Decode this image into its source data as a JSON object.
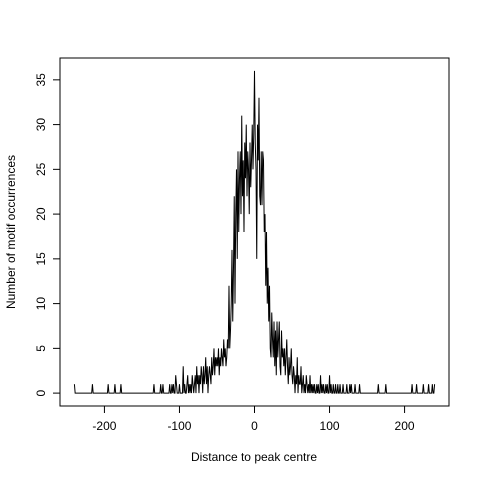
{
  "chart_data": {
    "type": "line",
    "xlabel": "Distance to peak centre",
    "ylabel": "Number of motif occurrences",
    "color": "#000000",
    "xlim": [
      -259.2,
      259.2
    ],
    "ylim": [
      -1.44,
      37.44
    ],
    "xticks": [
      -200,
      -100,
      0,
      100,
      200
    ],
    "yticks": [
      0,
      5,
      10,
      15,
      20,
      25,
      30,
      35
    ],
    "x": [
      -240,
      -239,
      -238,
      -237,
      -236,
      -235,
      -234,
      -233,
      -232,
      -231,
      -230,
      -229,
      -228,
      -227,
      -226,
      -225,
      -224,
      -223,
      -222,
      -221,
      -220,
      -219,
      -218,
      -217,
      -216,
      -215,
      -214,
      -213,
      -212,
      -211,
      -210,
      -209,
      -208,
      -207,
      -206,
      -205,
      -204,
      -203,
      -202,
      -201,
      -200,
      -199,
      -198,
      -197,
      -196,
      -195,
      -194,
      -193,
      -192,
      -191,
      -190,
      -189,
      -188,
      -187,
      -186,
      -185,
      -184,
      -183,
      -182,
      -181,
      -180,
      -179,
      -178,
      -177,
      -176,
      -175,
      -174,
      -173,
      -172,
      -171,
      -170,
      -169,
      -168,
      -167,
      -166,
      -165,
      -164,
      -163,
      -162,
      -161,
      -160,
      -159,
      -158,
      -157,
      -156,
      -155,
      -154,
      -153,
      -152,
      -151,
      -150,
      -149,
      -148,
      -147,
      -146,
      -145,
      -144,
      -143,
      -142,
      -141,
      -140,
      -139,
      -138,
      -137,
      -136,
      -135,
      -134,
      -133,
      -132,
      -131,
      -130,
      -129,
      -128,
      -127,
      -126,
      -125,
      -124,
      -123,
      -122,
      -121,
      -120,
      -119,
      -118,
      -117,
      -116,
      -115,
      -114,
      -113,
      -112,
      -111,
      -110,
      -109,
      -108,
      -107,
      -106,
      -105,
      -104,
      -103,
      -102,
      -101,
      -100,
      -99,
      -98,
      -97,
      -96,
      -95,
      -94,
      -93,
      -92,
      -91,
      -90,
      -89,
      -88,
      -87,
      -86,
      -85,
      -84,
      -83,
      -82,
      -81,
      -80,
      -79,
      -78,
      -77,
      -76,
      -75,
      -74,
      -73,
      -72,
      -71,
      -70,
      -69,
      -68,
      -67,
      -66,
      -65,
      -64,
      -63,
      -62,
      -61,
      -60,
      -59,
      -58,
      -57,
      -56,
      -55,
      -54,
      -53,
      -52,
      -51,
      -50,
      -49,
      -48,
      -47,
      -46,
      -45,
      -44,
      -43,
      -42,
      -41,
      -40,
      -39,
      -38,
      -37,
      -36,
      -35,
      -34,
      -33,
      -32,
      -31,
      -30,
      -29,
      -28,
      -27,
      -26,
      -25,
      -24,
      -23,
      -22,
      -21,
      -20,
      -19,
      -18,
      -17,
      -16,
      -15,
      -14,
      -13,
      -12,
      -11,
      -10,
      -9,
      -8,
      -7,
      -6,
      -5,
      -4,
      -3,
      -2,
      -1,
      0,
      1,
      2,
      3,
      4,
      5,
      6,
      7,
      8,
      9,
      10,
      11,
      12,
      13,
      14,
      15,
      16,
      17,
      18,
      19,
      20,
      21,
      22,
      23,
      24,
      25,
      26,
      27,
      28,
      29,
      30,
      31,
      32,
      33,
      34,
      35,
      36,
      37,
      38,
      39,
      40,
      41,
      42,
      43,
      44,
      45,
      46,
      47,
      48,
      49,
      50,
      51,
      52,
      53,
      54,
      55,
      56,
      57,
      58,
      59,
      60,
      61,
      62,
      63,
      64,
      65,
      66,
      67,
      68,
      69,
      70,
      71,
      72,
      73,
      74,
      75,
      76,
      77,
      78,
      79,
      80,
      81,
      82,
      83,
      84,
      85,
      86,
      87,
      88,
      89,
      90,
      91,
      92,
      93,
      94,
      95,
      96,
      97,
      98,
      99,
      100,
      101,
      102,
      103,
      104,
      105,
      106,
      107,
      108,
      109,
      110,
      111,
      112,
      113,
      114,
      115,
      116,
      117,
      118,
      119,
      120,
      121,
      122,
      123,
      124,
      125,
      126,
      127,
      128,
      129,
      130,
      131,
      132,
      133,
      134,
      135,
      136,
      137,
      138,
      139,
      140,
      141,
      142,
      143,
      144,
      145,
      146,
      147,
      148,
      149,
      150,
      151,
      152,
      153,
      154,
      155,
      156,
      157,
      158,
      159,
      160,
      161,
      162,
      163,
      164,
      165,
      166,
      167,
      168,
      169,
      170,
      171,
      172,
      173,
      174,
      175,
      176,
      177,
      178,
      179,
      180,
      181,
      182,
      183,
      184,
      185,
      186,
      187,
      188,
      189,
      190,
      191,
      192,
      193,
      194,
      195,
      196,
      197,
      198,
      199,
      200,
      201,
      202,
      203,
      204,
      205,
      206,
      207,
      208,
      209,
      210,
      211,
      212,
      213,
      214,
      215,
      216,
      217,
      218,
      219,
      220,
      221,
      222,
      223,
      224,
      225,
      226,
      227,
      228,
      229,
      230,
      231,
      232,
      233,
      234,
      235,
      236,
      237,
      238,
      239,
      240
    ],
    "values": [
      1,
      0,
      0,
      0,
      0,
      0,
      0,
      0,
      0,
      0,
      0,
      0,
      0,
      0,
      0,
      0,
      0,
      0,
      0,
      0,
      0,
      0,
      0,
      0,
      1,
      0,
      0,
      0,
      0,
      0,
      0,
      0,
      0,
      0,
      0,
      0,
      0,
      0,
      0,
      0,
      0,
      0,
      0,
      0,
      0,
      1,
      0,
      0,
      0,
      0,
      0,
      0,
      0,
      0,
      1,
      0,
      0,
      0,
      0,
      0,
      0,
      0,
      1,
      0,
      0,
      0,
      0,
      0,
      0,
      0,
      0,
      0,
      0,
      0,
      0,
      0,
      0,
      0,
      0,
      0,
      0,
      0,
      0,
      0,
      0,
      0,
      0,
      0,
      0,
      0,
      0,
      0,
      0,
      0,
      0,
      0,
      0,
      0,
      0,
      0,
      0,
      0,
      0,
      0,
      0,
      0,
      1,
      0,
      0,
      0,
      0,
      0,
      0,
      0,
      0,
      1,
      0,
      0,
      1,
      0,
      0,
      0,
      0,
      0,
      0,
      0,
      0,
      1,
      0,
      0,
      1,
      0,
      1,
      0,
      0,
      2,
      1,
      0,
      0,
      0,
      1,
      0,
      0,
      0,
      0,
      3,
      0,
      1,
      0,
      0,
      1,
      2,
      0,
      1,
      0,
      1,
      0,
      2,
      1,
      0,
      1,
      2,
      0,
      3,
      1,
      2,
      0,
      2,
      1,
      3,
      2,
      0,
      3,
      1,
      2,
      4,
      1,
      3,
      0,
      2,
      3,
      2,
      1,
      4,
      2,
      3,
      5,
      2,
      4,
      3,
      4,
      3,
      5,
      2,
      4,
      3,
      5,
      4,
      3,
      6,
      4,
      5,
      3,
      4,
      6,
      5,
      12,
      5,
      7,
      10,
      16,
      8,
      14,
      22,
      10,
      20,
      25,
      15,
      27,
      18,
      24,
      27,
      20,
      31,
      22,
      26,
      18,
      28,
      24,
      30,
      22,
      27,
      25,
      20,
      28,
      23,
      26,
      30,
      25,
      29,
      36,
      28,
      25,
      15,
      30,
      26,
      33,
      22,
      21,
      27,
      21,
      27,
      26,
      18,
      20,
      12,
      18,
      10,
      14,
      8,
      12,
      5,
      4,
      9,
      6,
      4,
      8,
      3,
      7,
      2,
      8,
      4,
      6,
      8,
      3,
      2,
      7,
      4,
      5,
      3,
      5,
      2,
      4,
      6,
      3,
      1,
      4,
      2,
      3,
      5,
      2,
      1,
      3,
      2,
      0,
      2,
      1,
      4,
      0,
      2,
      1,
      1,
      3,
      0,
      1,
      2,
      0,
      1,
      0,
      2,
      1,
      0,
      1,
      0,
      2,
      0,
      1,
      0,
      1,
      0,
      1,
      0,
      0,
      1,
      0,
      1,
      0,
      0,
      2,
      0,
      1,
      0,
      1,
      0,
      0,
      1,
      0,
      1,
      0,
      0,
      2,
      0,
      1,
      0,
      0,
      1,
      0,
      0,
      1,
      0,
      0,
      1,
      0,
      0,
      1,
      0,
      0,
      0,
      1,
      0,
      0,
      0,
      0,
      1,
      0,
      0,
      0,
      1,
      0,
      1,
      0,
      0,
      0,
      0,
      1,
      0,
      0,
      0,
      0,
      0,
      1,
      0,
      0,
      0,
      0,
      0,
      0,
      0,
      0,
      0,
      0,
      0,
      0,
      0,
      0,
      0,
      0,
      0,
      0,
      0,
      0,
      0,
      0,
      0,
      0,
      1,
      0,
      0,
      0,
      0,
      0,
      0,
      0,
      0,
      0,
      1,
      0,
      0,
      0,
      0,
      0,
      0,
      0,
      0,
      0,
      0,
      0,
      0,
      0,
      0,
      0,
      0,
      0,
      0,
      0,
      0,
      0,
      0,
      0,
      0,
      0,
      0,
      0,
      0,
      0,
      0,
      0,
      0,
      0,
      0,
      1,
      0,
      0,
      0,
      0,
      0,
      1,
      0,
      0,
      0,
      0,
      0,
      0,
      0,
      0,
      1,
      0,
      0,
      0,
      0,
      0,
      0,
      1,
      0,
      0,
      0,
      0,
      1,
      0,
      0,
      1
    ]
  }
}
